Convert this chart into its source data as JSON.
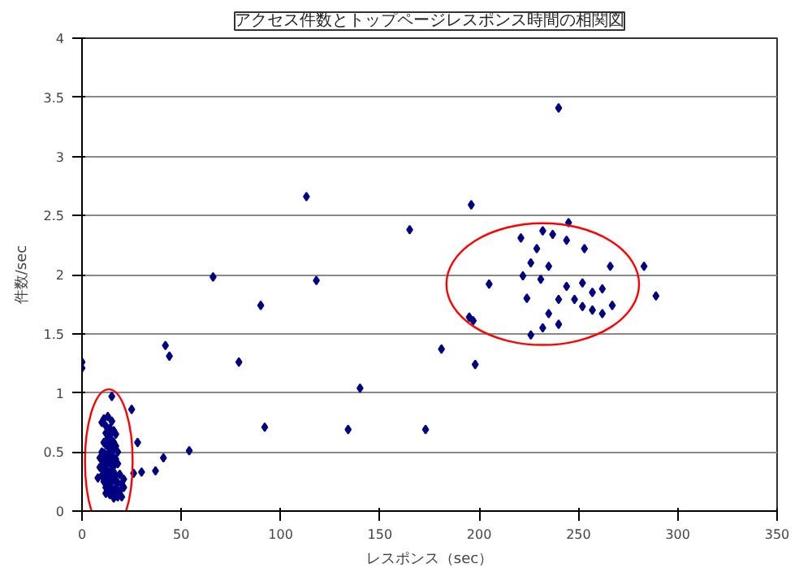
{
  "chart_data": {
    "type": "scatter",
    "title": "アクセス件数とトップページレスポンス時間の相関図",
    "xlabel": "レスポンス（sec）",
    "ylabel": "件数/sec",
    "x": [
      0,
      0,
      15,
      25,
      28,
      54,
      41,
      37,
      30,
      26,
      113,
      196,
      165,
      66,
      118,
      90,
      205,
      195,
      197,
      181,
      79,
      198,
      140,
      92,
      134,
      173,
      42,
      44,
      240,
      245,
      221,
      232,
      237,
      244,
      229,
      253,
      226,
      235,
      266,
      283,
      222,
      231,
      244,
      252,
      257,
      262,
      240,
      248,
      235,
      252,
      257,
      262,
      267,
      232,
      226,
      240,
      224,
      289,
      10,
      11,
      12,
      13,
      14,
      15,
      16,
      17,
      12,
      13,
      14,
      15,
      16,
      11,
      12,
      13,
      14,
      15,
      16,
      17,
      18,
      10,
      11,
      12,
      13,
      14,
      15,
      16,
      17,
      9,
      10,
      11,
      12,
      13,
      14,
      15,
      16,
      18,
      9,
      10,
      11,
      12,
      13,
      14,
      15,
      16,
      17,
      19,
      10,
      8,
      12,
      21,
      14,
      15,
      16,
      18,
      20,
      11,
      12,
      13,
      14,
      16,
      17,
      19,
      21,
      12,
      13,
      15,
      17,
      20,
      14,
      16,
      18
    ],
    "series": [
      {
        "color": "#000080",
        "values": [
          1.26,
          1.21,
          0.97,
          0.86,
          0.58,
          0.51,
          0.45,
          0.34,
          0.33,
          0.32,
          2.66,
          2.59,
          2.38,
          1.98,
          1.95,
          1.74,
          1.92,
          1.64,
          1.61,
          1.37,
          1.26,
          1.24,
          1.04,
          0.71,
          0.69,
          0.69,
          1.4,
          1.31,
          3.41,
          2.44,
          2.31,
          2.37,
          2.34,
          2.29,
          2.22,
          2.22,
          2.1,
          2.07,
          2.07,
          2.07,
          1.99,
          1.96,
          1.9,
          1.93,
          1.85,
          1.88,
          1.79,
          1.79,
          1.67,
          1.73,
          1.7,
          1.67,
          1.74,
          1.55,
          1.49,
          1.58,
          1.8,
          1.82,
          0.75,
          0.78,
          0.72,
          0.8,
          0.7,
          0.76,
          0.68,
          0.65,
          0.66,
          0.62,
          0.64,
          0.6,
          0.58,
          0.58,
          0.56,
          0.55,
          0.57,
          0.53,
          0.52,
          0.55,
          0.5,
          0.5,
          0.49,
          0.48,
          0.47,
          0.5,
          0.46,
          0.45,
          0.44,
          0.45,
          0.43,
          0.42,
          0.41,
          0.4,
          0.42,
          0.39,
          0.38,
          0.4,
          0.37,
          0.36,
          0.35,
          0.36,
          0.34,
          0.33,
          0.32,
          0.33,
          0.3,
          0.31,
          0.3,
          0.28,
          0.29,
          0.27,
          0.26,
          0.25,
          0.26,
          0.24,
          0.23,
          0.25,
          0.2,
          0.22,
          0.2,
          0.18,
          0.19,
          0.17,
          0.2,
          0.15,
          0.18,
          0.16,
          0.13,
          0.12,
          0.14,
          0.11,
          0.12
        ]
      }
    ],
    "xlim": [
      0,
      350
    ],
    "xticks": [
      0,
      50,
      100,
      150,
      200,
      250,
      300,
      350
    ],
    "ylim": [
      0,
      4
    ],
    "yticks": [
      0,
      0.5,
      1,
      1.5,
      2,
      2.5,
      3,
      3.5,
      4
    ],
    "grid": "y",
    "marker": "diamond"
  }
}
